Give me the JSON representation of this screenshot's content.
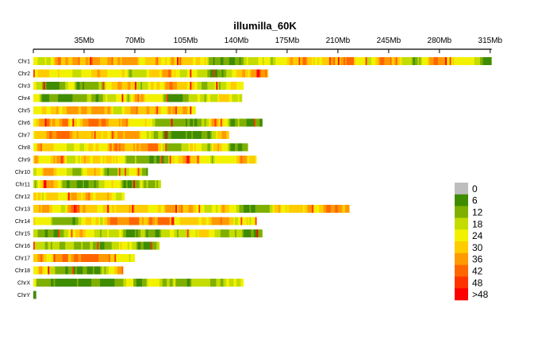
{
  "chart_data": {
    "type": "heatmap",
    "title": "illumilla_60K",
    "x_unit": "Mb",
    "x_max_mb": 316,
    "x_ticks": [
      {
        "value": 35,
        "label": "35Mb"
      },
      {
        "value": 70,
        "label": "70Mb"
      },
      {
        "value": 105,
        "label": "105Mb"
      },
      {
        "value": 140,
        "label": "140Mb"
      },
      {
        "value": 175,
        "label": "175Mb"
      },
      {
        "value": 210,
        "label": "210Mb"
      },
      {
        "value": 245,
        "label": "245Mb"
      },
      {
        "value": 280,
        "label": "280Mb"
      },
      {
        "value": 315,
        "label": "315Mb"
      }
    ],
    "chromosomes": [
      {
        "name": "Chr1",
        "length_mb": 316
      },
      {
        "name": "Chr2",
        "length_mb": 162
      },
      {
        "name": "Chr3",
        "length_mb": 145
      },
      {
        "name": "Chr4",
        "length_mb": 144
      },
      {
        "name": "Chr5",
        "length_mb": 112
      },
      {
        "name": "Chr6",
        "length_mb": 158
      },
      {
        "name": "Chr7",
        "length_mb": 135
      },
      {
        "name": "Chr8",
        "length_mb": 148
      },
      {
        "name": "Chr9",
        "length_mb": 154
      },
      {
        "name": "Chr10",
        "length_mb": 79
      },
      {
        "name": "Chr11",
        "length_mb": 88
      },
      {
        "name": "Chr12",
        "length_mb": 63
      },
      {
        "name": "Chr13",
        "length_mb": 218
      },
      {
        "name": "Chr14",
        "length_mb": 154
      },
      {
        "name": "Chr15",
        "length_mb": 158
      },
      {
        "name": "Chr16",
        "length_mb": 87
      },
      {
        "name": "Chr17",
        "length_mb": 70
      },
      {
        "name": "Chr18",
        "length_mb": 62
      },
      {
        "name": "ChrX",
        "length_mb": 145
      },
      {
        "name": "ChrY",
        "length_mb": 2
      }
    ],
    "legend": {
      "title": "",
      "items": [
        {
          "label": "0",
          "color": "#BEBEBE"
        },
        {
          "label": "6",
          "color": "#3F8C00"
        },
        {
          "label": "12",
          "color": "#7FB000"
        },
        {
          "label": "18",
          "color": "#C4DC00"
        },
        {
          "label": "24",
          "color": "#F2F200"
        },
        {
          "label": "30",
          "color": "#FFCC00"
        },
        {
          "label": "36",
          "color": "#FF9A00"
        },
        {
          "label": "42",
          "color": "#FF6600"
        },
        {
          "label": "48",
          "color": "#FF3300"
        },
        {
          "label": ">48",
          "color": "#FF0000"
        }
      ]
    },
    "bin_size_mb": 1,
    "density_note": "Marker (SNP) count per window, colour-coded by legend"
  }
}
